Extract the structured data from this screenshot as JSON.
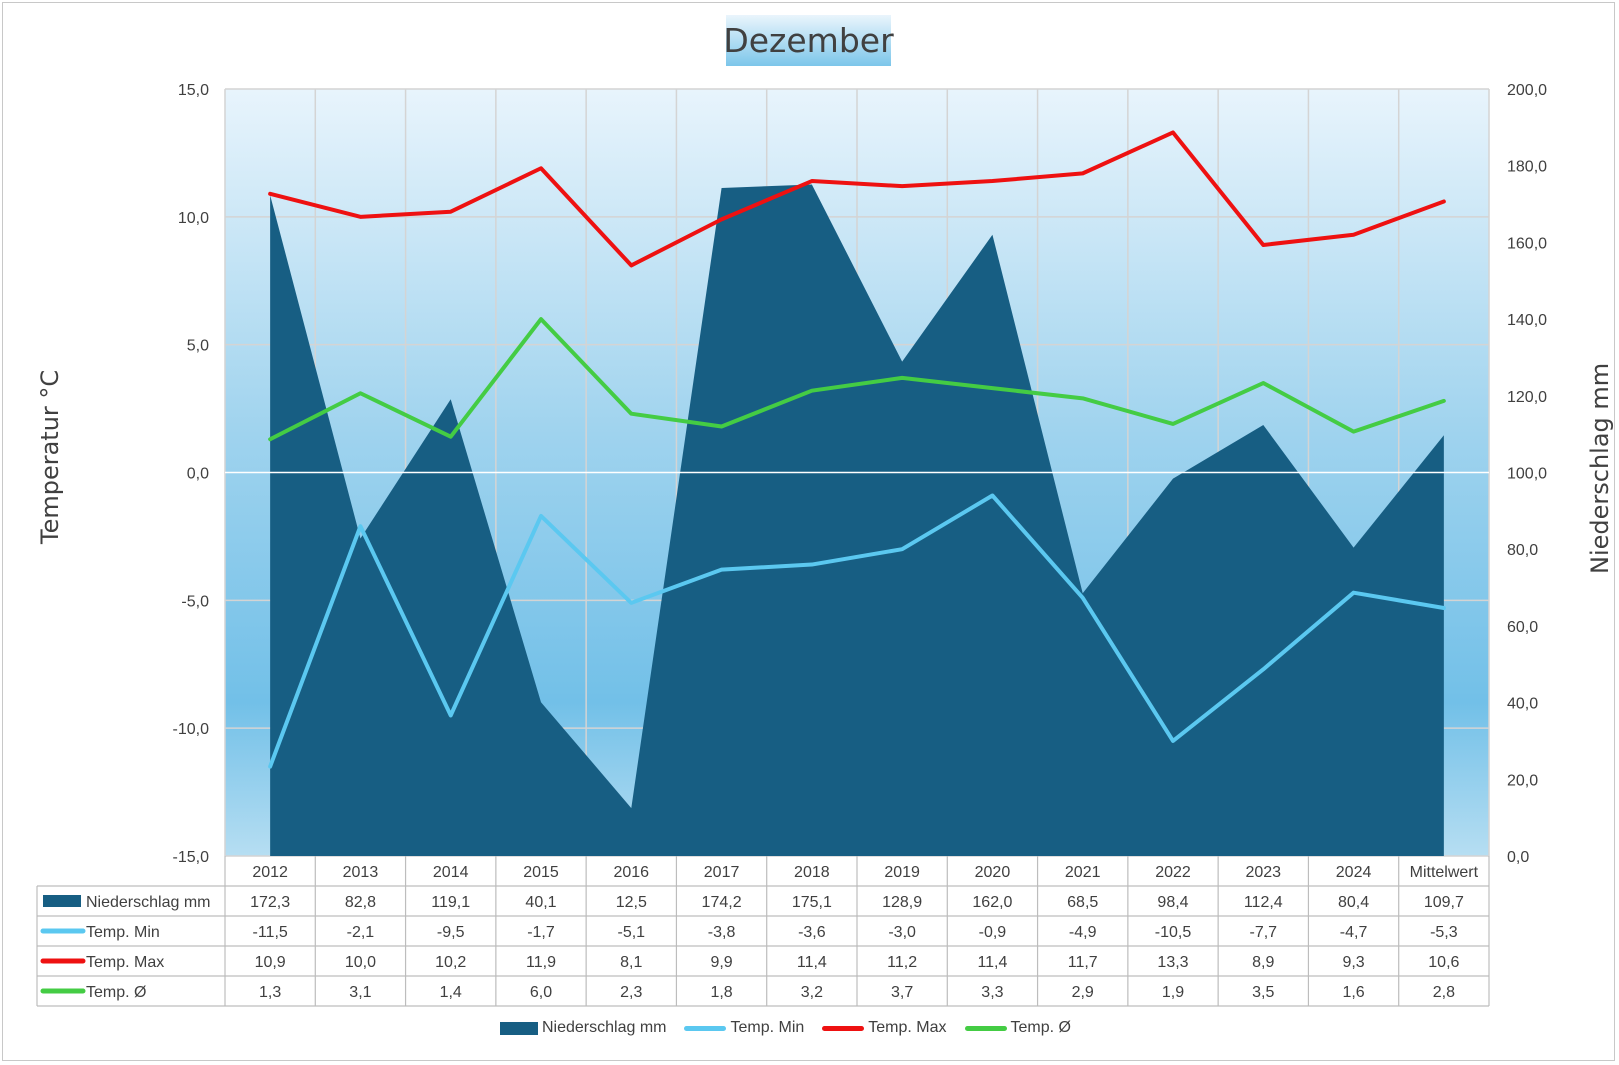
{
  "chart_data": {
    "type": "combo",
    "title": "Dezember",
    "ylabel_left": "Temperatur °C",
    "ylabel_right": "Niederschlag mm",
    "ylim_left": [
      -15,
      15
    ],
    "ylim_right": [
      0,
      200
    ],
    "yticks_left": [
      "15,0",
      "10,0",
      "5,0",
      "0,0",
      "-5,0",
      "-10,0",
      "-15,0"
    ],
    "yticks_right": [
      "200,0",
      "180,0",
      "160,0",
      "140,0",
      "120,0",
      "100,0",
      "80,0",
      "60,0",
      "40,0",
      "20,0",
      "0,0"
    ],
    "categories": [
      "2012",
      "2013",
      "2014",
      "2015",
      "2016",
      "2017",
      "2018",
      "2019",
      "2020",
      "2021",
      "2022",
      "2023",
      "2024",
      "Mittelwert"
    ],
    "series": [
      {
        "name": "Niederschlag mm",
        "kind": "area",
        "axis": "right",
        "color": "#175e83",
        "values": [
          172.3,
          82.8,
          119.1,
          40.1,
          12.5,
          174.2,
          175.1,
          128.9,
          162.0,
          68.5,
          98.4,
          112.4,
          80.4,
          109.7
        ],
        "labels": [
          "172,3",
          "82,8",
          "119,1",
          "40,1",
          "12,5",
          "174,2",
          "175,1",
          "128,9",
          "162,0",
          "68,5",
          "98,4",
          "112,4",
          "80,4",
          "109,7"
        ]
      },
      {
        "name": "Temp. Min",
        "kind": "line",
        "axis": "left",
        "color": "#5bc8f0",
        "values": [
          -11.5,
          -2.1,
          -9.5,
          -1.7,
          -5.1,
          -3.8,
          -3.6,
          -3.0,
          -0.9,
          -4.9,
          -10.5,
          -7.7,
          -4.7,
          -5.3
        ],
        "labels": [
          "-11,5",
          "-2,1",
          "-9,5",
          "-1,7",
          "-5,1",
          "-3,8",
          "-3,6",
          "-3,0",
          "-0,9",
          "-4,9",
          "-10,5",
          "-7,7",
          "-4,7",
          "-5,3"
        ]
      },
      {
        "name": "Temp. Max",
        "kind": "line",
        "axis": "left",
        "color": "#ee1111",
        "values": [
          10.9,
          10.0,
          10.2,
          11.9,
          8.1,
          9.9,
          11.4,
          11.2,
          11.4,
          11.7,
          13.3,
          8.9,
          9.3,
          10.6
        ],
        "labels": [
          "10,9",
          "10,0",
          "10,2",
          "11,9",
          "8,1",
          "9,9",
          "11,4",
          "11,2",
          "11,4",
          "11,7",
          "13,3",
          "8,9",
          "9,3",
          "10,6"
        ]
      },
      {
        "name": "Temp. Ø",
        "kind": "line",
        "axis": "left",
        "color": "#44cc44",
        "values": [
          1.3,
          3.1,
          1.4,
          6.0,
          2.3,
          1.8,
          3.2,
          3.7,
          3.3,
          2.9,
          1.9,
          3.5,
          1.6,
          2.8
        ],
        "labels": [
          "1,3",
          "3,1",
          "1,4",
          "6,0",
          "2,3",
          "1,8",
          "3,2",
          "3,7",
          "3,3",
          "2,9",
          "1,9",
          "3,5",
          "1,6",
          "2,8"
        ]
      }
    ],
    "grid": true,
    "data_table": true,
    "legend_position": "bottom"
  }
}
